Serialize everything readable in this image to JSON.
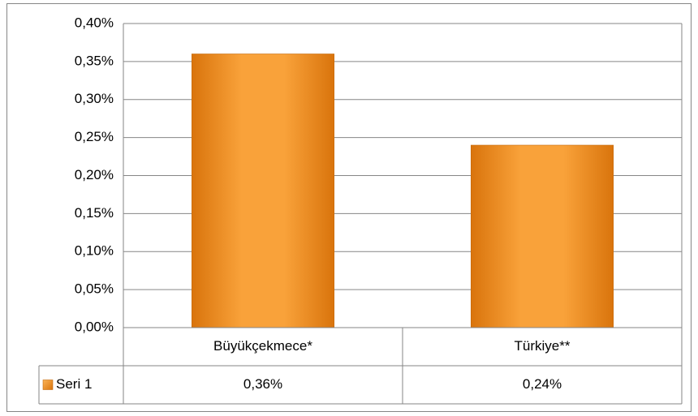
{
  "chart_data": {
    "type": "bar",
    "categories": [
      "Büyükçekmece*",
      "Türkiye**"
    ],
    "series": [
      {
        "name": "Seri 1",
        "color": "#f39424",
        "values": [
          0.36,
          0.24
        ],
        "value_labels": [
          "0,36%",
          "0,24%"
        ]
      }
    ],
    "ylim": [
      0,
      0.4
    ],
    "yticks": [
      {
        "value": 0,
        "label": "0,00%"
      },
      {
        "value": 0.05,
        "label": "0,05%"
      },
      {
        "value": 0.1,
        "label": "0,10%"
      },
      {
        "value": 0.15,
        "label": "0,15%"
      },
      {
        "value": 0.2,
        "label": "0,20%"
      },
      {
        "value": 0.25,
        "label": "0,25%"
      },
      {
        "value": 0.3,
        "label": "0,30%"
      },
      {
        "value": 0.35,
        "label": "0,35%"
      },
      {
        "value": 0.4,
        "label": "0,40%"
      }
    ],
    "grid": true,
    "data_table": true
  }
}
